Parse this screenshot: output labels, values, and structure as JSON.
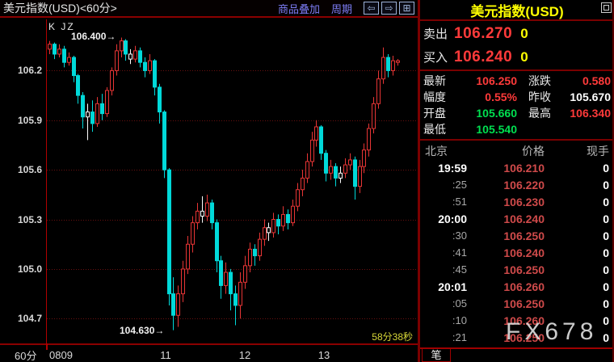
{
  "window": {
    "title": "美元指数(USD)<60分>",
    "menu": {
      "overlay": "商品叠加",
      "period": "周期"
    }
  },
  "colors": {
    "up": "#e83535",
    "down": "#00d9d9",
    "white": "#ffffff",
    "red": "#ff3a3a",
    "green": "#00e050",
    "yellow": "#ffff00",
    "grid": "#6a1010",
    "axis": "#b00000"
  },
  "chart": {
    "indicator_label": "K JZ",
    "countdown": "58分38秒",
    "period_label": "60分",
    "anno_high": "106.400→",
    "anno_low": "104.630→"
  },
  "chart_data": {
    "type": "candlestick",
    "title": "美元指数(USD) 60分K线",
    "ylim": [
      104.55,
      106.51
    ],
    "y_ticks": [
      "106.2",
      "105.9",
      "105.6",
      "105.3",
      "105.0",
      "104.7"
    ],
    "x_labels": [
      "0809",
      "11",
      "12",
      "13"
    ],
    "grid": "horizontal-dotted",
    "annotations": [
      {
        "text": "106.400",
        "price": 106.4,
        "type": "high"
      },
      {
        "text": "104.630",
        "price": 104.63,
        "type": "low"
      }
    ],
    "candles": [
      [
        106.33,
        106.38,
        106.3,
        106.36,
        "u"
      ],
      [
        106.36,
        106.37,
        106.27,
        106.3,
        "d"
      ],
      [
        106.3,
        106.36,
        106.28,
        106.33,
        "u"
      ],
      [
        106.33,
        106.35,
        106.22,
        106.25,
        "d"
      ],
      [
        106.25,
        106.31,
        106.23,
        106.28,
        "u"
      ],
      [
        106.28,
        106.29,
        106.13,
        106.17,
        "d"
      ],
      [
        106.17,
        106.18,
        106.0,
        106.05,
        "d"
      ],
      [
        106.05,
        106.07,
        105.85,
        105.92,
        "d"
      ],
      [
        105.92,
        106.0,
        105.78,
        105.95,
        "w"
      ],
      [
        105.95,
        106.02,
        105.83,
        105.88,
        "d"
      ],
      [
        105.88,
        106.04,
        105.86,
        106.0,
        "u"
      ],
      [
        106.0,
        106.06,
        105.9,
        105.94,
        "d"
      ],
      [
        105.94,
        106.1,
        105.92,
        106.08,
        "u"
      ],
      [
        106.08,
        106.22,
        106.05,
        106.2,
        "u"
      ],
      [
        106.2,
        106.36,
        106.17,
        106.32,
        "u"
      ],
      [
        106.32,
        106.4,
        106.28,
        106.38,
        "u"
      ],
      [
        106.38,
        106.39,
        106.26,
        106.3,
        "d"
      ],
      [
        106.3,
        106.33,
        106.24,
        106.27,
        "w"
      ],
      [
        106.27,
        106.35,
        106.25,
        106.32,
        "u"
      ],
      [
        106.32,
        106.34,
        106.22,
        106.25,
        "d"
      ],
      [
        106.25,
        106.28,
        106.16,
        106.2,
        "d"
      ],
      [
        106.2,
        106.3,
        106.18,
        106.26,
        "u"
      ],
      [
        106.26,
        106.27,
        106.05,
        106.1,
        "d"
      ],
      [
        106.1,
        106.12,
        105.88,
        105.95,
        "d"
      ],
      [
        105.95,
        105.96,
        105.55,
        105.6,
        "d"
      ],
      [
        105.6,
        105.61,
        104.78,
        104.85,
        "d"
      ],
      [
        104.85,
        104.95,
        104.63,
        104.72,
        "d"
      ],
      [
        104.72,
        104.9,
        104.65,
        104.85,
        "u"
      ],
      [
        104.85,
        105.05,
        104.8,
        105.0,
        "u"
      ],
      [
        105.0,
        105.2,
        104.97,
        105.15,
        "u"
      ],
      [
        105.15,
        105.32,
        105.1,
        105.28,
        "u"
      ],
      [
        105.28,
        105.4,
        105.24,
        105.35,
        "u"
      ],
      [
        105.35,
        105.44,
        105.28,
        105.32,
        "w"
      ],
      [
        105.32,
        105.45,
        105.29,
        105.4,
        "u"
      ],
      [
        105.4,
        105.42,
        105.24,
        105.28,
        "d"
      ],
      [
        105.28,
        105.3,
        104.98,
        105.05,
        "d"
      ],
      [
        105.05,
        105.08,
        104.82,
        104.9,
        "d"
      ],
      [
        104.9,
        105.04,
        104.85,
        104.98,
        "u"
      ],
      [
        104.98,
        105.0,
        104.75,
        104.85,
        "d"
      ],
      [
        104.85,
        104.9,
        104.66,
        104.78,
        "d"
      ],
      [
        104.78,
        104.98,
        104.7,
        104.92,
        "u"
      ],
      [
        104.92,
        105.08,
        104.88,
        105.02,
        "u"
      ],
      [
        105.02,
        105.16,
        104.98,
        105.12,
        "u"
      ],
      [
        105.12,
        105.15,
        105.02,
        105.08,
        "d"
      ],
      [
        105.08,
        105.22,
        105.05,
        105.18,
        "u"
      ],
      [
        105.18,
        105.3,
        105.14,
        105.25,
        "u"
      ],
      [
        105.25,
        105.28,
        105.17,
        105.22,
        "w"
      ],
      [
        105.22,
        105.34,
        105.19,
        105.3,
        "u"
      ],
      [
        105.3,
        105.33,
        105.21,
        105.26,
        "d"
      ],
      [
        105.26,
        105.38,
        105.23,
        105.33,
        "u"
      ],
      [
        105.33,
        105.36,
        105.24,
        105.28,
        "d"
      ],
      [
        105.28,
        105.42,
        105.26,
        105.38,
        "u"
      ],
      [
        105.38,
        105.52,
        105.35,
        105.48,
        "u"
      ],
      [
        105.48,
        105.6,
        105.44,
        105.55,
        "u"
      ],
      [
        105.55,
        105.7,
        105.52,
        105.65,
        "u"
      ],
      [
        105.65,
        105.83,
        105.62,
        105.78,
        "u"
      ],
      [
        105.78,
        105.9,
        105.74,
        105.86,
        "u"
      ],
      [
        105.86,
        105.87,
        105.66,
        105.7,
        "d"
      ],
      [
        105.7,
        105.72,
        105.53,
        105.58,
        "d"
      ],
      [
        105.58,
        105.66,
        105.54,
        105.62,
        "u"
      ],
      [
        105.62,
        105.64,
        105.5,
        105.55,
        "d"
      ],
      [
        105.55,
        105.62,
        105.52,
        105.58,
        "w"
      ],
      [
        105.58,
        105.67,
        105.55,
        105.63,
        "u"
      ],
      [
        105.63,
        105.7,
        105.6,
        105.66,
        "u"
      ],
      [
        105.66,
        105.68,
        105.42,
        105.5,
        "d"
      ],
      [
        105.5,
        105.66,
        105.46,
        105.62,
        "u"
      ],
      [
        105.62,
        105.76,
        105.58,
        105.72,
        "u"
      ],
      [
        105.72,
        105.88,
        105.68,
        105.85,
        "u"
      ],
      [
        105.85,
        106.04,
        105.82,
        106.0,
        "u"
      ],
      [
        106.0,
        106.2,
        105.97,
        106.15,
        "u"
      ],
      [
        106.15,
        106.34,
        106.12,
        106.28,
        "u"
      ],
      [
        106.28,
        106.3,
        106.16,
        106.2,
        "d"
      ],
      [
        106.2,
        106.29,
        106.17,
        106.26,
        "u"
      ],
      [
        106.26,
        106.27,
        106.23,
        106.25,
        "u"
      ]
    ]
  },
  "panel": {
    "title": "美元指数(USD)",
    "quote": [
      {
        "label": "卖出",
        "value": "106.270",
        "extra": "0"
      },
      {
        "label": "买入",
        "value": "106.240",
        "extra": "0"
      }
    ],
    "stats": [
      {
        "label": "最新",
        "value": "106.250",
        "color": "red",
        "label2": "涨跌",
        "value2": "0.580",
        "color2": "red"
      },
      {
        "label": "幅度",
        "value": "0.55%",
        "color": "red",
        "label2": "昨收",
        "value2": "105.670",
        "color2": "white"
      },
      {
        "label": "开盘",
        "value": "105.660",
        "color": "green",
        "label2": "最高",
        "value2": "106.340",
        "color2": "red"
      },
      {
        "label": "最低",
        "value": "105.540",
        "color": "green",
        "label2": "",
        "value2": "",
        "color2": "white"
      }
    ],
    "ticks": {
      "headers": [
        "北京",
        "价格",
        "现手"
      ],
      "rows": [
        [
          "19:59",
          "106.210",
          "0"
        ],
        [
          ":25",
          "106.220",
          "0"
        ],
        [
          ":51",
          "106.230",
          "0"
        ],
        [
          "20:00",
          "106.240",
          "0"
        ],
        [
          ":30",
          "106.250",
          "0"
        ],
        [
          ":41",
          "106.240",
          "0"
        ],
        [
          ":45",
          "106.250",
          "0"
        ],
        [
          "20:01",
          "106.260",
          "0"
        ],
        [
          ":05",
          "106.250",
          "0"
        ],
        [
          ":10",
          "106.260",
          "0"
        ],
        [
          ":21",
          "106.250",
          "0"
        ]
      ]
    },
    "tab": "笔"
  },
  "watermark": "FX678"
}
